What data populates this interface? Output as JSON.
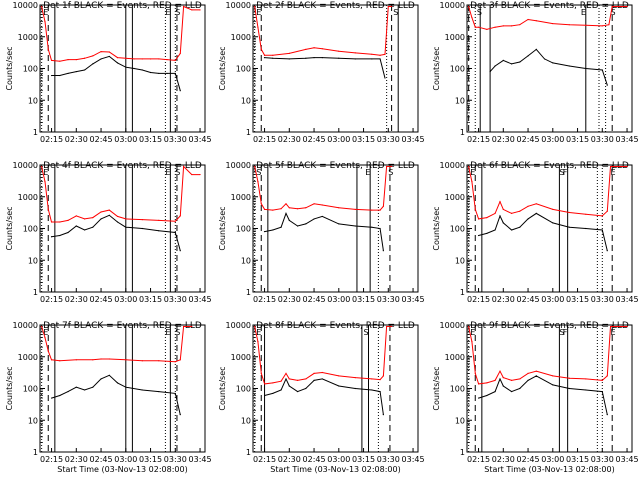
{
  "chart_data": [
    {
      "type": "line",
      "title": "Det 1f BLACK = Events, RED = LLD",
      "xlabel": "",
      "ylabel": "Counts/sec",
      "xlim": [
        "02:08",
        "03:48"
      ],
      "ylim": [
        1,
        10000
      ],
      "y_scale": "log",
      "grid": false,
      "x_ticks": [
        "02:15",
        "02:30",
        "02:45",
        "03:00",
        "03:15",
        "03:30",
        "03:45"
      ],
      "y_ticks": [
        "1",
        "10",
        "100",
        "1000",
        "10000"
      ],
      "annotations": [
        "E",
        "E",
        "S"
      ],
      "series": [
        {
          "color": "#000000",
          "x": [
            "02:15",
            "02:20",
            "02:25",
            "02:30",
            "02:35",
            "02:40",
            "02:45",
            "02:50",
            "02:55",
            "03:00",
            "03:05",
            "03:10",
            "03:15",
            "03:20",
            "03:25",
            "03:30",
            "03:33"
          ],
          "values": [
            60,
            60,
            70,
            80,
            90,
            140,
            200,
            240,
            150,
            110,
            100,
            90,
            75,
            70,
            70,
            70,
            20
          ]
        },
        {
          "color": "#ff0000",
          "x": [
            "02:09",
            "02:11",
            "02:13",
            "02:15",
            "02:20",
            "02:25",
            "02:30",
            "02:35",
            "02:40",
            "02:45",
            "02:50",
            "02:55",
            "03:00",
            "03:05",
            "03:10",
            "03:15",
            "03:20",
            "03:25",
            "03:30",
            "03:33",
            "03:35",
            "03:40",
            "03:45"
          ],
          "values": [
            9000,
            3000,
            400,
            180,
            170,
            190,
            190,
            210,
            250,
            340,
            330,
            220,
            210,
            200,
            200,
            200,
            200,
            190,
            180,
            300,
            9000,
            7000,
            7000
          ]
        }
      ]
    },
    {
      "type": "line",
      "title": "Det 2f BLACK = Events, RED = LLD",
      "xlabel": "",
      "ylabel": "Counts/sec",
      "xlim": [
        "02:08",
        "03:48"
      ],
      "ylim": [
        1,
        10000
      ],
      "y_scale": "log",
      "grid": false,
      "x_ticks": [
        "02:15",
        "02:30",
        "02:45",
        "03:00",
        "03:15",
        "03:30",
        "03:45"
      ],
      "y_ticks": [
        "1",
        "10",
        "100",
        "1000",
        "10000"
      ],
      "annotations": [
        "E",
        "S"
      ],
      "series": [
        {
          "color": "#000000",
          "x": [
            "02:15",
            "02:20",
            "02:30",
            "02:40",
            "02:45",
            "02:50",
            "03:00",
            "03:10",
            "03:20",
            "03:25",
            "03:28"
          ],
          "values": [
            220,
            210,
            200,
            210,
            220,
            220,
            210,
            200,
            200,
            200,
            50
          ]
        },
        {
          "color": "#ff0000",
          "x": [
            "02:09",
            "02:11",
            "02:13",
            "02:15",
            "02:20",
            "02:30",
            "02:40",
            "02:45",
            "02:50",
            "03:00",
            "03:10",
            "03:20",
            "03:25",
            "03:28",
            "03:30",
            "03:32"
          ],
          "values": [
            9000,
            2000,
            400,
            260,
            260,
            300,
            400,
            450,
            420,
            350,
            310,
            280,
            260,
            280,
            9000,
            9000
          ]
        }
      ]
    },
    {
      "type": "line",
      "title": "Det 3f BLACK = Events, RED = LLD",
      "xlabel": "",
      "ylabel": "Counts/sec",
      "xlim": [
        "02:08",
        "03:48"
      ],
      "ylim": [
        1,
        10000
      ],
      "y_scale": "log",
      "grid": false,
      "x_ticks": [
        "02:15",
        "02:30",
        "02:45",
        "03:00",
        "03:15",
        "03:30",
        "03:45"
      ],
      "y_ticks": [
        "1",
        "10",
        "100",
        "1000",
        "10000"
      ],
      "annotations": [
        "S",
        "E",
        "S"
      ],
      "series": [
        {
          "color": "#000000",
          "x": [
            "02:22",
            "02:25",
            "02:30",
            "02:35",
            "02:40",
            "02:45",
            "02:50",
            "02:55",
            "03:00",
            "03:10",
            "03:20",
            "03:30",
            "03:33"
          ],
          "values": [
            80,
            120,
            180,
            140,
            160,
            250,
            400,
            200,
            150,
            120,
            100,
            90,
            30
          ]
        },
        {
          "color": "#ff0000",
          "x": [
            "02:09",
            "02:11",
            "02:13",
            "02:15",
            "02:20",
            "02:25",
            "02:30",
            "02:35",
            "02:40",
            "02:45",
            "02:50",
            "03:00",
            "03:10",
            "03:20",
            "03:30",
            "03:34",
            "03:36",
            "03:45"
          ],
          "values": [
            9000,
            4000,
            2000,
            2000,
            1700,
            2000,
            2200,
            2200,
            2400,
            3500,
            3200,
            2600,
            2400,
            2300,
            2200,
            2400,
            9000,
            9000
          ]
        }
      ]
    },
    {
      "type": "line",
      "title": "Det 4f BLACK = Events, RED = LLD",
      "xlabel": "",
      "ylabel": "Counts/sec",
      "xlim": [
        "02:08",
        "03:48"
      ],
      "ylim": [
        1,
        10000
      ],
      "y_scale": "log",
      "grid": false,
      "x_ticks": [
        "02:15",
        "02:30",
        "02:45",
        "03:00",
        "03:15",
        "03:30",
        "03:45"
      ],
      "y_ticks": [
        "1",
        "10",
        "100",
        "1000",
        "10000"
      ],
      "annotations": [
        "E",
        "E",
        "S"
      ],
      "series": [
        {
          "color": "#000000",
          "x": [
            "02:15",
            "02:20",
            "02:25",
            "02:30",
            "02:35",
            "02:40",
            "02:45",
            "02:50",
            "02:55",
            "03:00",
            "03:10",
            "03:20",
            "03:30",
            "03:33"
          ],
          "values": [
            55,
            60,
            75,
            120,
            90,
            110,
            200,
            260,
            160,
            110,
            100,
            85,
            75,
            20
          ]
        },
        {
          "color": "#ff0000",
          "x": [
            "02:09",
            "02:11",
            "02:13",
            "02:15",
            "02:20",
            "02:25",
            "02:30",
            "02:35",
            "02:40",
            "02:45",
            "02:50",
            "02:55",
            "03:00",
            "03:10",
            "03:20",
            "03:30",
            "03:33",
            "03:35",
            "03:40",
            "03:45"
          ],
          "values": [
            9000,
            3000,
            400,
            160,
            160,
            180,
            250,
            200,
            220,
            330,
            380,
            240,
            200,
            190,
            180,
            170,
            250,
            9000,
            5000,
            5000
          ]
        }
      ]
    },
    {
      "type": "line",
      "title": "Det 5f BLACK = Events, RED = LLD",
      "xlabel": "",
      "ylabel": "Counts/sec",
      "xlim": [
        "02:08",
        "03:48"
      ],
      "ylim": [
        1,
        10000
      ],
      "y_scale": "log",
      "grid": false,
      "x_ticks": [
        "02:15",
        "02:30",
        "02:45",
        "03:00",
        "03:15",
        "03:30",
        "03:45"
      ],
      "y_ticks": [
        "1",
        "10",
        "100",
        "1000",
        "10000"
      ],
      "annotations": [
        "S",
        "E",
        "S"
      ],
      "series": [
        {
          "color": "#000000",
          "x": [
            "02:15",
            "02:20",
            "02:25",
            "02:28",
            "02:30",
            "02:35",
            "02:40",
            "02:45",
            "02:50",
            "03:00",
            "03:10",
            "03:20",
            "03:25",
            "03:27"
          ],
          "values": [
            80,
            90,
            110,
            300,
            180,
            120,
            140,
            200,
            240,
            140,
            120,
            110,
            100,
            20
          ]
        },
        {
          "color": "#ff0000",
          "x": [
            "02:09",
            "02:11",
            "02:13",
            "02:15",
            "02:20",
            "02:25",
            "02:28",
            "02:30",
            "02:35",
            "02:40",
            "02:45",
            "02:50",
            "03:00",
            "03:10",
            "03:20",
            "03:25",
            "03:27",
            "03:29",
            "03:32"
          ],
          "values": [
            9000,
            3000,
            600,
            400,
            380,
            420,
            600,
            450,
            420,
            450,
            600,
            550,
            450,
            400,
            380,
            380,
            500,
            9000,
            9000
          ]
        }
      ]
    },
    {
      "type": "line",
      "title": "Det 6f BLACK = Events, RED = LLD",
      "xlabel": "",
      "ylabel": "Counts/sec",
      "xlim": [
        "02:08",
        "03:48"
      ],
      "ylim": [
        1,
        10000
      ],
      "y_scale": "log",
      "grid": false,
      "x_ticks": [
        "02:15",
        "02:30",
        "02:45",
        "03:00",
        "03:15",
        "03:30",
        "03:45"
      ],
      "y_ticks": [
        "1",
        "10",
        "100",
        "1000",
        "10000"
      ],
      "annotations": [
        "E",
        "F",
        "E",
        "S"
      ],
      "series": [
        {
          "color": "#000000",
          "x": [
            "02:15",
            "02:20",
            "02:25",
            "02:28",
            "02:30",
            "02:35",
            "02:40",
            "02:45",
            "02:50",
            "03:00",
            "03:10",
            "03:20",
            "03:30",
            "03:33"
          ],
          "values": [
            60,
            70,
            90,
            250,
            150,
            90,
            110,
            200,
            300,
            150,
            110,
            100,
            90,
            20
          ]
        },
        {
          "color": "#ff0000",
          "x": [
            "02:09",
            "02:11",
            "02:13",
            "02:15",
            "02:20",
            "02:25",
            "02:28",
            "02:30",
            "02:35",
            "02:40",
            "02:45",
            "02:50",
            "03:00",
            "03:10",
            "03:20",
            "03:30",
            "03:33",
            "03:35",
            "03:45"
          ],
          "values": [
            9000,
            3000,
            400,
            200,
            220,
            300,
            700,
            400,
            300,
            350,
            500,
            600,
            400,
            320,
            280,
            250,
            350,
            9000,
            9000
          ]
        }
      ]
    },
    {
      "type": "line",
      "title": "Det 7f BLACK = Events, RED = LLD",
      "xlabel": "Start Time (03-Nov-13 02:08:00)",
      "ylabel": "Counts/sec",
      "xlim": [
        "02:08",
        "03:48"
      ],
      "ylim": [
        1,
        10000
      ],
      "y_scale": "log",
      "grid": false,
      "x_ticks": [
        "02:15",
        "02:30",
        "02:45",
        "03:00",
        "03:15",
        "03:30",
        "03:45"
      ],
      "y_ticks": [
        "1",
        "10",
        "100",
        "1000",
        "10000"
      ],
      "annotations": [
        "E",
        "E",
        "S"
      ],
      "series": [
        {
          "color": "#000000",
          "x": [
            "02:15",
            "02:20",
            "02:25",
            "02:30",
            "02:35",
            "02:40",
            "02:45",
            "02:50",
            "02:55",
            "03:00",
            "03:10",
            "03:20",
            "03:30",
            "03:33"
          ],
          "values": [
            50,
            60,
            80,
            110,
            90,
            110,
            200,
            260,
            150,
            110,
            90,
            80,
            70,
            15
          ]
        },
        {
          "color": "#ff0000",
          "x": [
            "02:09",
            "02:11",
            "02:13",
            "02:15",
            "02:20",
            "02:30",
            "02:40",
            "02:45",
            "02:50",
            "03:00",
            "03:10",
            "03:20",
            "03:30",
            "03:33",
            "03:35",
            "03:40"
          ],
          "values": [
            9000,
            4000,
            1500,
            800,
            750,
            800,
            800,
            850,
            850,
            800,
            750,
            750,
            700,
            800,
            9000,
            9000
          ]
        }
      ]
    },
    {
      "type": "line",
      "title": "Det 8f BLACK = Events, RED = LLD",
      "xlabel": "Start Time (03-Nov-13 02:08:00)",
      "ylabel": "Counts/sec",
      "xlim": [
        "02:08",
        "03:48"
      ],
      "ylim": [
        1,
        10000
      ],
      "y_scale": "log",
      "grid": false,
      "x_ticks": [
        "02:15",
        "02:30",
        "02:45",
        "03:00",
        "03:15",
        "03:30",
        "03:45"
      ],
      "y_ticks": [
        "1",
        "10",
        "100",
        "1000",
        "10000"
      ],
      "annotations": [
        "E",
        "S"
      ],
      "series": [
        {
          "color": "#000000",
          "x": [
            "02:15",
            "02:20",
            "02:25",
            "02:28",
            "02:30",
            "02:35",
            "02:40",
            "02:45",
            "02:50",
            "03:00",
            "03:10",
            "03:20",
            "03:25",
            "03:27"
          ],
          "values": [
            60,
            70,
            90,
            200,
            120,
            80,
            100,
            180,
            200,
            120,
            100,
            90,
            80,
            15
          ]
        },
        {
          "color": "#ff0000",
          "x": [
            "02:09",
            "02:11",
            "02:13",
            "02:15",
            "02:20",
            "02:25",
            "02:28",
            "02:30",
            "02:35",
            "02:40",
            "02:45",
            "02:50",
            "03:00",
            "03:10",
            "03:20",
            "03:25",
            "03:27",
            "03:29",
            "03:32"
          ],
          "values": [
            9000,
            3000,
            300,
            140,
            150,
            170,
            300,
            200,
            180,
            200,
            300,
            320,
            250,
            220,
            200,
            190,
            250,
            9000,
            9000
          ]
        }
      ]
    },
    {
      "type": "line",
      "title": "Det 9f BLACK = Events, RED = LLD",
      "xlabel": "Start Time (03-Nov-13 02:08:00)",
      "ylabel": "Counts/sec",
      "xlim": [
        "02:08",
        "03:48"
      ],
      "ylim": [
        1,
        10000
      ],
      "y_scale": "log",
      "grid": false,
      "x_ticks": [
        "02:15",
        "02:30",
        "02:45",
        "03:00",
        "03:15",
        "03:30",
        "03:45"
      ],
      "y_ticks": [
        "1",
        "10",
        "100",
        "1000",
        "10000"
      ],
      "annotations": [
        "E",
        "F",
        "E",
        "S"
      ],
      "series": [
        {
          "color": "#000000",
          "x": [
            "02:15",
            "02:20",
            "02:25",
            "02:28",
            "02:30",
            "02:35",
            "02:40",
            "02:45",
            "02:50",
            "03:00",
            "03:10",
            "03:20",
            "03:30",
            "03:33"
          ],
          "values": [
            50,
            60,
            80,
            200,
            120,
            80,
            100,
            180,
            250,
            130,
            100,
            90,
            80,
            15
          ]
        },
        {
          "color": "#ff0000",
          "x": [
            "02:09",
            "02:11",
            "02:13",
            "02:15",
            "02:20",
            "02:25",
            "02:28",
            "02:30",
            "02:35",
            "02:40",
            "02:45",
            "02:50",
            "03:00",
            "03:10",
            "03:20",
            "03:30",
            "03:33",
            "03:35",
            "03:45"
          ],
          "values": [
            9000,
            3000,
            300,
            140,
            150,
            180,
            350,
            220,
            180,
            200,
            300,
            350,
            250,
            210,
            200,
            180,
            250,
            9000,
            9000
          ]
        }
      ]
    }
  ]
}
